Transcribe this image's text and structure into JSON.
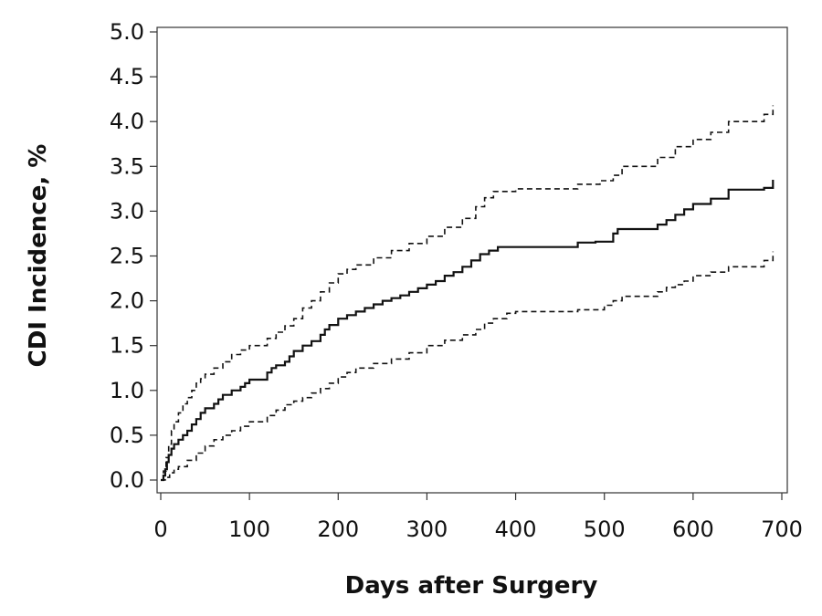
{
  "chart_data": {
    "type": "line",
    "xlabel": "Days after Surgery",
    "ylabel": "CDI Incidence, %",
    "xlim": [
      0,
      700
    ],
    "ylim": [
      0,
      5.0
    ],
    "x_ticks": [
      "0",
      "100",
      "200",
      "300",
      "400",
      "500",
      "600",
      "700"
    ],
    "y_ticks": [
      "0.0",
      "0.5",
      "1.0",
      "1.5",
      "2.0",
      "2.5",
      "3.0",
      "3.5",
      "4.0",
      "4.5",
      "5.0"
    ],
    "grid": false,
    "line_color": "#111111",
    "series": [
      {
        "style": "solid",
        "step": true,
        "x": [
          0,
          3,
          5,
          7,
          9,
          12,
          15,
          20,
          25,
          30,
          35,
          40,
          45,
          50,
          60,
          65,
          70,
          80,
          90,
          95,
          100,
          120,
          125,
          130,
          140,
          145,
          150,
          160,
          170,
          180,
          185,
          190,
          200,
          210,
          220,
          230,
          240,
          250,
          260,
          270,
          280,
          290,
          300,
          310,
          320,
          330,
          340,
          350,
          360,
          370,
          380,
          400,
          470,
          490,
          510,
          515,
          560,
          570,
          580,
          590,
          600,
          620,
          640,
          680,
          690
        ],
        "y": [
          0.0,
          0.05,
          0.12,
          0.2,
          0.28,
          0.35,
          0.4,
          0.45,
          0.5,
          0.55,
          0.62,
          0.68,
          0.75,
          0.8,
          0.85,
          0.9,
          0.95,
          1.0,
          1.04,
          1.08,
          1.12,
          1.2,
          1.25,
          1.28,
          1.32,
          1.38,
          1.44,
          1.5,
          1.55,
          1.62,
          1.68,
          1.73,
          1.8,
          1.84,
          1.88,
          1.92,
          1.96,
          2.0,
          2.03,
          2.06,
          2.1,
          2.14,
          2.18,
          2.22,
          2.28,
          2.32,
          2.38,
          2.45,
          2.52,
          2.56,
          2.6,
          2.6,
          2.65,
          2.66,
          2.75,
          2.8,
          2.85,
          2.9,
          2.96,
          3.02,
          3.08,
          3.14,
          3.24,
          3.26,
          3.35
        ]
      },
      {
        "style": "dashed",
        "step": true,
        "x": [
          0,
          3,
          6,
          9,
          12,
          15,
          20,
          25,
          30,
          35,
          40,
          45,
          50,
          60,
          70,
          80,
          90,
          100,
          120,
          130,
          140,
          150,
          160,
          170,
          180,
          190,
          200,
          210,
          220,
          240,
          260,
          280,
          300,
          320,
          340,
          355,
          365,
          375,
          400,
          470,
          495,
          510,
          520,
          560,
          580,
          600,
          620,
          640,
          680,
          690
        ],
        "y": [
          0.0,
          0.1,
          0.25,
          0.4,
          0.55,
          0.65,
          0.75,
          0.85,
          0.92,
          1.0,
          1.08,
          1.13,
          1.18,
          1.25,
          1.32,
          1.4,
          1.45,
          1.5,
          1.58,
          1.65,
          1.72,
          1.8,
          1.92,
          2.0,
          2.1,
          2.2,
          2.3,
          2.35,
          2.4,
          2.48,
          2.56,
          2.64,
          2.72,
          2.82,
          2.92,
          3.05,
          3.15,
          3.22,
          3.25,
          3.3,
          3.34,
          3.4,
          3.5,
          3.6,
          3.72,
          3.8,
          3.88,
          4.0,
          4.08,
          4.18
        ]
      },
      {
        "style": "dashed",
        "step": true,
        "x": [
          0,
          5,
          10,
          15,
          20,
          30,
          40,
          50,
          60,
          70,
          80,
          90,
          100,
          120,
          130,
          140,
          150,
          160,
          170,
          180,
          190,
          200,
          210,
          220,
          240,
          260,
          280,
          300,
          320,
          340,
          355,
          365,
          375,
          390,
          400,
          470,
          500,
          510,
          520,
          560,
          570,
          580,
          590,
          600,
          620,
          640,
          680,
          690
        ],
        "y": [
          0.0,
          0.03,
          0.08,
          0.12,
          0.15,
          0.22,
          0.3,
          0.38,
          0.45,
          0.5,
          0.55,
          0.6,
          0.65,
          0.72,
          0.78,
          0.84,
          0.88,
          0.92,
          0.97,
          1.02,
          1.08,
          1.15,
          1.2,
          1.25,
          1.3,
          1.35,
          1.42,
          1.5,
          1.56,
          1.62,
          1.68,
          1.75,
          1.8,
          1.86,
          1.88,
          1.9,
          1.95,
          2.0,
          2.05,
          2.1,
          2.15,
          2.18,
          2.22,
          2.28,
          2.32,
          2.38,
          2.45,
          2.55
        ]
      }
    ]
  }
}
